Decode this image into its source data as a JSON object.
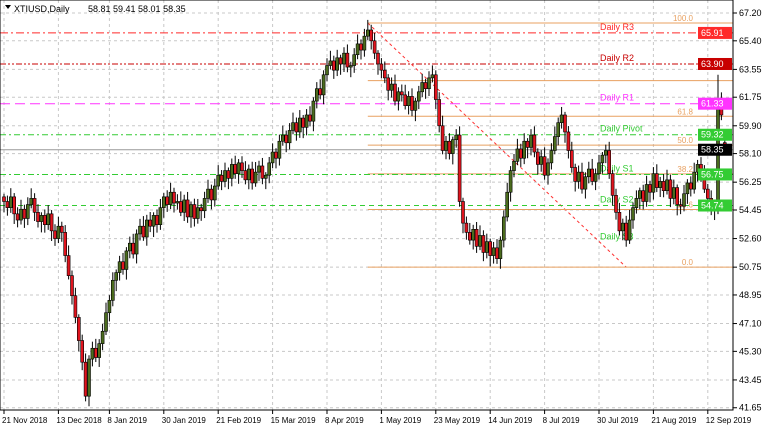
{
  "header": {
    "symbol": "XTIUSD,Daily",
    "ohlc": "58.81 59.41 58.01 58.35"
  },
  "colors": {
    "bull": "#4b6b1e",
    "bear": "#e0141e",
    "r3": "#ff2a2a",
    "r2": "#c80000",
    "r1": "#ff33ff",
    "pivot": "#33cc33",
    "support": "#33cc33",
    "fib": "#e8a060",
    "current": "#000000"
  },
  "chart_data": {
    "type": "candlestick",
    "ylim": [
      41.65,
      67.2
    ],
    "grid": true,
    "y_ticks": [
      "67.20",
      "65.40",
      "63.55",
      "61.75",
      "59.90",
      "58.10",
      "56.25",
      "54.45",
      "52.60",
      "50.75",
      "48.95",
      "47.10",
      "45.30",
      "43.45",
      "41.65"
    ],
    "x_ticks": [
      {
        "label": "21 Nov 2018",
        "index": 0
      },
      {
        "label": "13 Dec 2018",
        "index": 16
      },
      {
        "label": "8 Jan 2019",
        "index": 31
      },
      {
        "label": "30 Jan 2019",
        "index": 47
      },
      {
        "label": "21 Feb 2019",
        "index": 63
      },
      {
        "label": "15 Mar 2019",
        "index": 79
      },
      {
        "label": "8 Apr 2019",
        "index": 95
      },
      {
        "label": "1 May 2019",
        "index": 111
      },
      {
        "label": "23 May 2019",
        "index": 127
      },
      {
        "label": "14 Jun 2019",
        "index": 143
      },
      {
        "label": "8 Jul 2019",
        "index": 159
      },
      {
        "label": "30 Jul 2019",
        "index": 175
      },
      {
        "label": "21 Aug 2019",
        "index": 191
      },
      {
        "label": "12 Sep 2019",
        "index": 207
      }
    ],
    "closes": [
      55.0,
      54.6,
      55.3,
      54.2,
      53.8,
      54.5,
      53.9,
      54.8,
      55.2,
      54.3,
      53.7,
      54.1,
      53.5,
      54.2,
      53.1,
      52.6,
      53.4,
      53.0,
      51.5,
      50.2,
      48.9,
      47.5,
      46.0,
      44.6,
      42.4,
      44.8,
      45.5,
      44.9,
      45.8,
      46.6,
      47.8,
      48.6,
      49.9,
      50.4,
      51.1,
      50.6,
      51.8,
      52.3,
      51.6,
      52.9,
      53.4,
      52.7,
      53.8,
      53.4,
      54.1,
      53.5,
      54.6,
      55.3,
      54.8,
      55.6,
      54.9,
      55.0,
      54.3,
      55.1,
      54.0,
      54.8,
      53.9,
      54.6,
      54.4,
      55.2,
      55.8,
      55.1,
      56.0,
      56.7,
      56.3,
      57.0,
      56.5,
      57.4,
      56.8,
      57.5,
      57.0,
      56.4,
      57.1,
      56.2,
      56.9,
      57.3,
      56.5,
      56.7,
      57.5,
      58.2,
      57.8,
      58.9,
      59.3,
      58.8,
      59.6,
      60.1,
      59.5,
      60.4,
      59.8,
      60.6,
      60.2,
      61.5,
      62.3,
      61.9,
      63.2,
      63.8,
      64.1,
      63.5,
      64.3,
      63.9,
      64.6,
      63.7,
      63.8,
      64.5,
      65.2,
      64.8,
      65.7,
      66.1,
      65.4,
      64.6,
      63.9,
      63.5,
      63.0,
      62.2,
      62.6,
      61.5,
      62.1,
      61.9,
      61.2,
      61.8,
      60.9,
      61.5,
      62.1,
      62.7,
      62.3,
      63.0,
      63.2,
      61.6,
      59.9,
      58.3,
      58.9,
      58.1,
      59.0,
      59.3,
      55.0,
      53.6,
      53.0,
      52.5,
      53.2,
      52.1,
      52.8,
      51.7,
      52.4,
      51.5,
      52.0,
      51.3,
      52.5,
      54.0,
      55.6,
      57.0,
      57.6,
      58.4,
      57.8,
      58.9,
      58.5,
      59.3,
      58.2,
      57.4,
      57.9,
      56.7,
      57.5,
      58.3,
      59.2,
      60.1,
      60.6,
      59.5,
      58.3,
      57.2,
      56.3,
      56.9,
      55.8,
      56.6,
      57.1,
      56.3,
      56.8,
      57.5,
      58.0,
      58.3,
      56.8,
      55.4,
      54.3,
      53.1,
      53.6,
      52.5,
      53.8,
      54.6,
      55.2,
      55.7,
      55.0,
      56.1,
      55.6,
      56.8,
      55.9,
      56.3,
      55.7,
      56.4,
      55.2,
      55.9,
      54.8,
      54.7,
      55.5,
      56.2,
      55.8,
      56.9,
      57.4,
      56.7,
      55.8,
      55.2,
      54.5,
      54.7,
      61.5,
      60.6,
      58.35
    ],
    "last_candle": {
      "open": 58.81,
      "high": 59.41,
      "low": 58.01,
      "close": 58.35
    },
    "pivot_levels": [
      {
        "label": "Daily R3",
        "value": 65.91,
        "tag": "65.91",
        "color_key": "r3",
        "dash": "8,3,2,3"
      },
      {
        "label": "Daily R2",
        "value": 63.9,
        "tag": "63.90",
        "color_key": "r2",
        "dash": "6,2,2,2,2,2"
      },
      {
        "label": "Daily R1",
        "value": 61.33,
        "tag": "61.33",
        "color_key": "r1",
        "dash": "10,5"
      },
      {
        "label": "Daily Pivot",
        "value": 59.32,
        "tag": "59.32",
        "color_key": "pivot",
        "dash": "6,3,2,3"
      },
      {
        "label": "Daily S1",
        "value": 56.75,
        "tag": "56.75",
        "color_key": "support",
        "dash": "6,3,2,3"
      },
      {
        "label": "Daily S2",
        "value": 54.74,
        "tag": "54.74",
        "color_key": "support",
        "dash": "5,4"
      },
      {
        "label": "Daily S3",
        "value": 52.75,
        "tag": "",
        "color_key": "support",
        "dash": ""
      }
    ],
    "current_price": {
      "value": 58.35,
      "tag": "58.35"
    },
    "fibonacci": {
      "high": 66.55,
      "low": 50.75,
      "start_index": 107,
      "end_index": 183,
      "levels": [
        {
          "ratio": 100.0,
          "label": "100.0"
        },
        {
          "ratio": 76.4,
          "label": ""
        },
        {
          "ratio": 61.8,
          "label": "61.8"
        },
        {
          "ratio": 50.0,
          "label": "50.0"
        },
        {
          "ratio": 38.2,
          "label": "38.2"
        },
        {
          "ratio": 23.6,
          "label": "23.6"
        },
        {
          "ratio": 0.0,
          "label": "0.0"
        }
      ]
    }
  }
}
